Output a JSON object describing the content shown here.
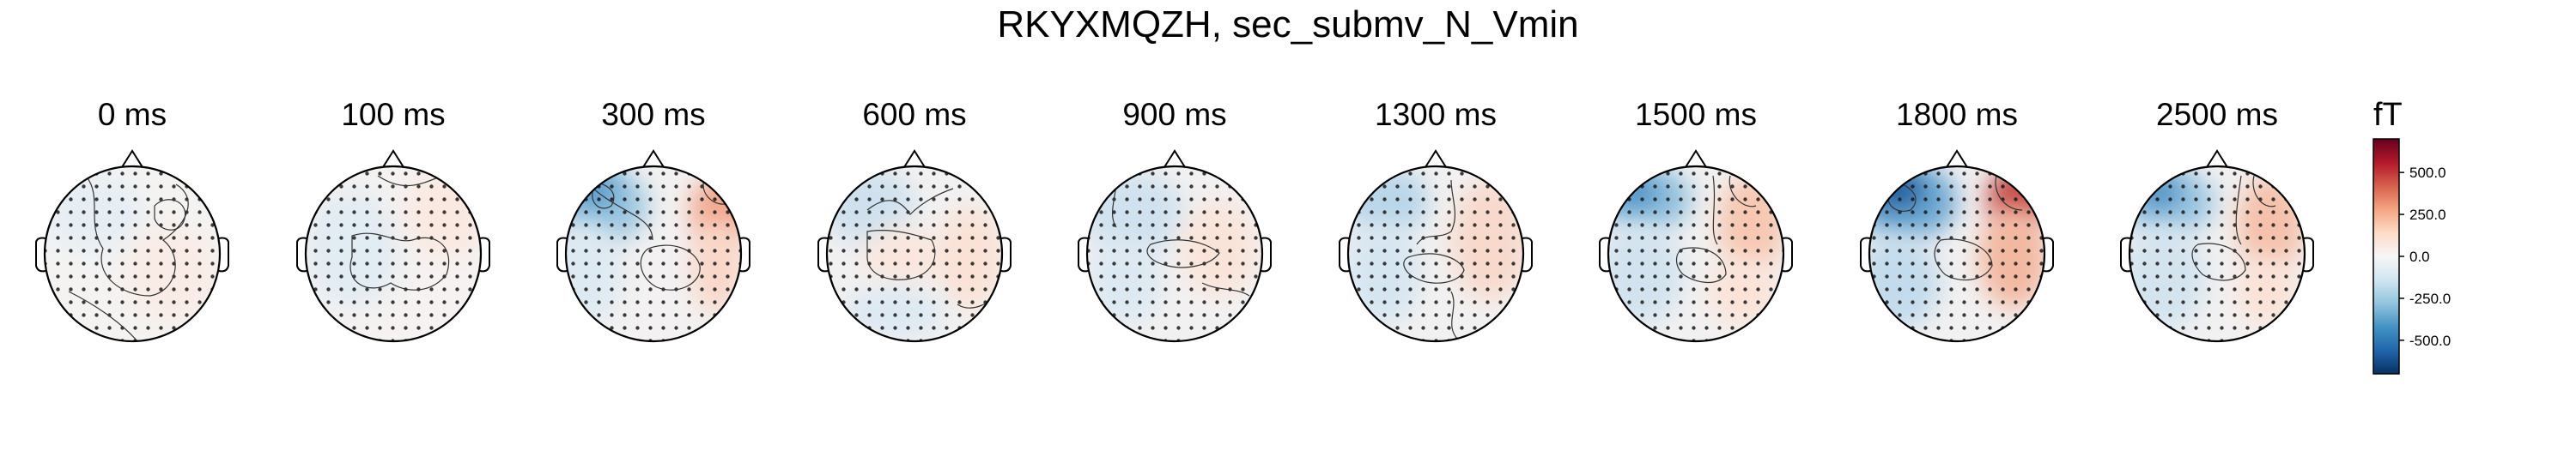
{
  "figure": {
    "title": "RKYXMQZH, sec_submv_N_Vmin"
  },
  "topomaps": [
    {
      "label": "0 ms"
    },
    {
      "label": "100 ms"
    },
    {
      "label": "300 ms"
    },
    {
      "label": "600 ms"
    },
    {
      "label": "900 ms"
    },
    {
      "label": "1300 ms"
    },
    {
      "label": "1500 ms"
    },
    {
      "label": "1800 ms"
    },
    {
      "label": "2500 ms"
    }
  ],
  "colorbar": {
    "unit": "fT",
    "ticks": [
      "500.0",
      "250.0",
      "0.0",
      "-250.0",
      "-500.0"
    ],
    "tick_values": [
      500,
      250,
      0,
      -250,
      -500
    ],
    "range": [
      -700,
      700
    ],
    "colormap": "RdBu_r",
    "colors": [
      "#053061",
      "#2166ac",
      "#4393c3",
      "#92c5de",
      "#d1e5f0",
      "#f7f7f7",
      "#fddbc7",
      "#f4a582",
      "#d6604d",
      "#b2182b",
      "#67001f"
    ]
  }
}
